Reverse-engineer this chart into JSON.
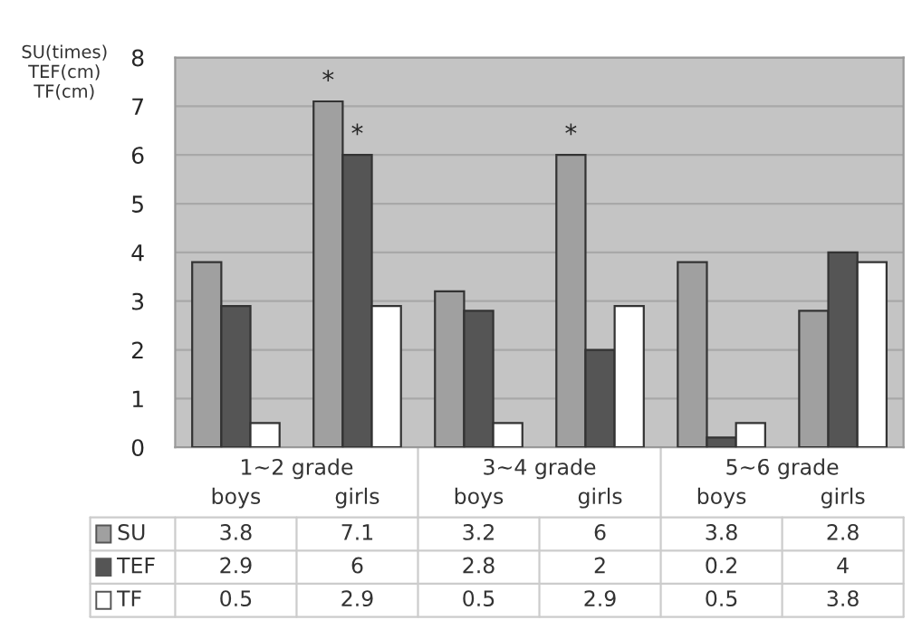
{
  "chart_data": {
    "type": "bar",
    "ylabel": "SU(times)\nTEF(cm)\nTF(cm)",
    "categories": [
      "boys",
      "girls",
      "boys",
      "girls",
      "boys",
      "girls"
    ],
    "series": [
      {
        "name": "SU",
        "color": "#a0a0a0",
        "values": [
          3.8,
          7.1,
          3.2,
          6,
          3.8,
          2.8
        ]
      },
      {
        "name": "TEF",
        "color": "#555555",
        "values": [
          2.9,
          6,
          2.8,
          2,
          0.2,
          4
        ]
      },
      {
        "name": "TF",
        "color": "#ffffff",
        "values": [
          0.5,
          2.9,
          0.5,
          2.9,
          0.5,
          3.8
        ]
      }
    ],
    "ylim": [
      0,
      8
    ],
    "yticks": [
      0,
      1,
      2,
      3,
      4,
      5,
      6,
      7,
      8
    ],
    "grid": "y",
    "data_labels": true,
    "legend": "bottom left",
    "annotations": [
      "1~2 grade",
      "3~4 grade",
      "5~6 grade",
      "*",
      "*",
      "*"
    ]
  }
}
